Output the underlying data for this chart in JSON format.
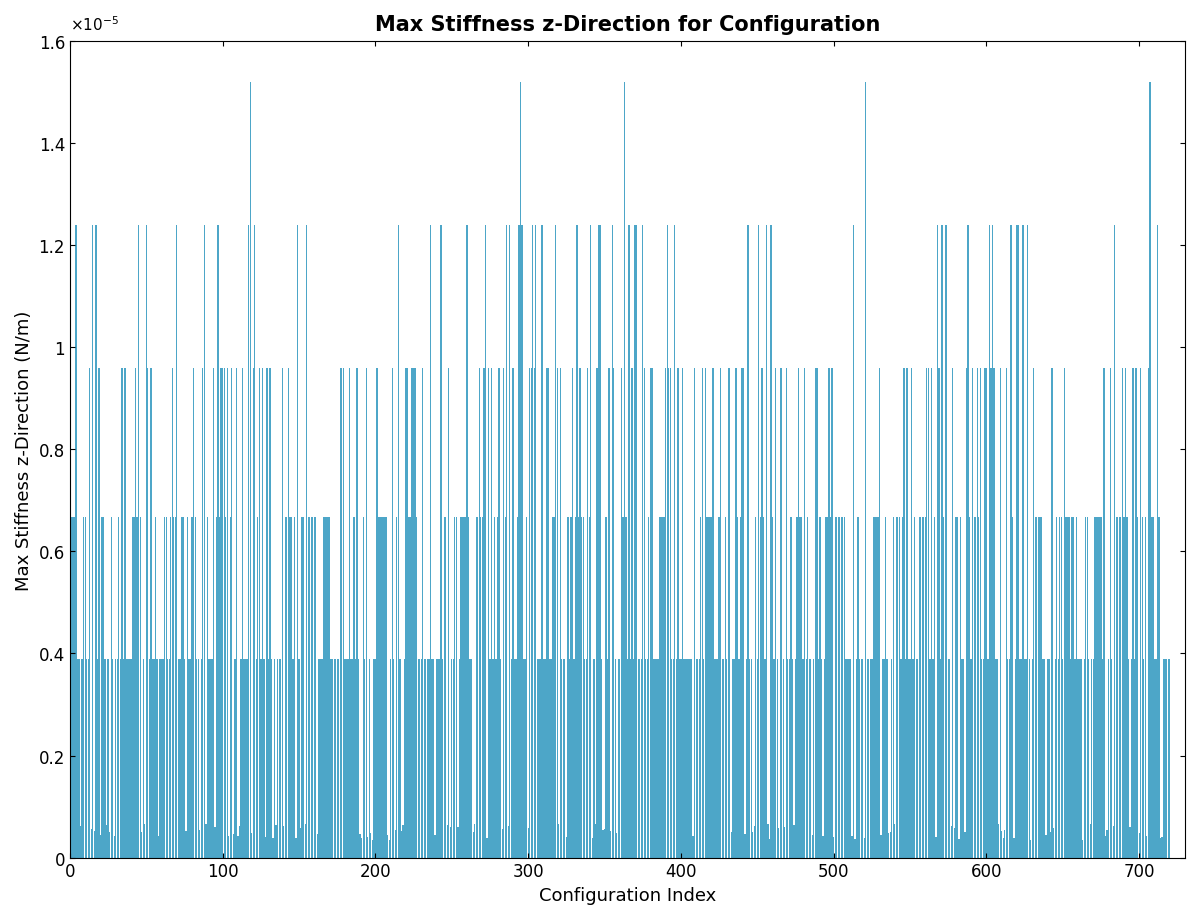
{
  "title": "Max Stiffness z-Direction for Configuration",
  "xlabel": "Configuration Index",
  "ylabel": "Max Stiffness z-Direction (N/m)",
  "xlim": [
    0,
    730
  ],
  "ylim": [
    0,
    1.6e-05
  ],
  "yticks": [
    0,
    2e-06,
    4e-06,
    6e-06,
    8e-06,
    1e-05,
    1.2e-05,
    1.4e-05,
    1.6e-05
  ],
  "ytick_labels": [
    "0",
    "0.2",
    "0.4",
    "0.6",
    "0.8",
    "1",
    "1.2",
    "1.4",
    "1.6"
  ],
  "xticks": [
    0,
    100,
    200,
    300,
    400,
    500,
    600,
    700
  ],
  "bar_color": "#4da6c8",
  "bar_width": 0.85,
  "n_configs": 720,
  "title_fontsize": 15,
  "label_fontsize": 13,
  "tick_fontsize": 12,
  "background_color": "#ffffff",
  "seed": 7
}
